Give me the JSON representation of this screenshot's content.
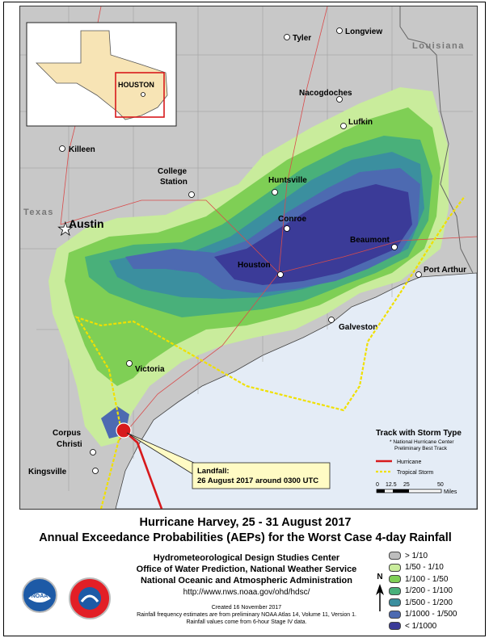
{
  "map": {
    "inset": {
      "label": "HOUSTON"
    },
    "regions": {
      "texas": "Texas",
      "louisiana": "Louisiana"
    },
    "cities": {
      "tyler": "Tyler",
      "longview": "Longview",
      "nacogdoches": "Nacogdoches",
      "lufkin": "Lufkin",
      "killeen": "Killeen",
      "college": "College",
      "station": "Station",
      "huntsville": "Huntsville",
      "austin": "Austin",
      "conroe": "Conroe",
      "beaumont": "Beaumont",
      "houston": "Houston",
      "port_arthur": "Port Arthur",
      "galveston": "Galveston",
      "victoria": "Victoria",
      "corpus": "Corpus",
      "christi": "Christi",
      "kingsville": "Kingsville"
    },
    "landfall": {
      "title": "Landfall:",
      "text": "26 August 2017 around 0300 UTC"
    },
    "track_legend": {
      "title": "Track with Storm Type",
      "note1": "* National Hurricane Center",
      "note2": "Preliminary Best Track",
      "hurricane": "Hurricane",
      "tropical_storm": "Tropical Storm",
      "hurricane_color": "#d7191c",
      "tropical_color": "#f0e000"
    },
    "scale": {
      "t0": "0",
      "t1": "12.5",
      "t2": "25",
      "t3": "50",
      "unit": "Miles"
    }
  },
  "footer": {
    "title_line1": "Hurricane Harvey, 25 - 31 August 2017",
    "title_line2": "Annual Exceedance Probabilities (AEPs) for the Worst Case 4-day Rainfall",
    "agency1": "Hydrometeorological Design Studies Center",
    "agency2": "Office of Water Prediction, National Weather Service",
    "agency3": "National Oceanic and Atmospheric Administration",
    "url": "http://www.nws.noaa.gov/ohd/hdsc/",
    "created": "Created 16 November 2017",
    "note1": "Rainfall frequency estimates are from preliminary NOAA Atlas 14, Volume 11, Version 1.",
    "note2": "Rainfall values come from 6-hour Stage IV data.",
    "north": "N",
    "noaa_logo": "NOAA",
    "nws_logo": "NATIONAL WEATHER SERVICE"
  },
  "aep_legend": [
    {
      "label": "> 1/10",
      "color": "#bdbdbd"
    },
    {
      "label": "1/50 - 1/10",
      "color": "#c9ec9c"
    },
    {
      "label": "1/100 - 1/50",
      "color": "#7fcf55"
    },
    {
      "label": "1/200 - 1/100",
      "color": "#49b07a"
    },
    {
      "label": "1/500 - 1/200",
      "color": "#3b8f9f"
    },
    {
      "label": "1/1000 - 1/500",
      "color": "#4d6ab1"
    },
    {
      "label": "< 1/1000",
      "color": "#3b3b98"
    }
  ]
}
